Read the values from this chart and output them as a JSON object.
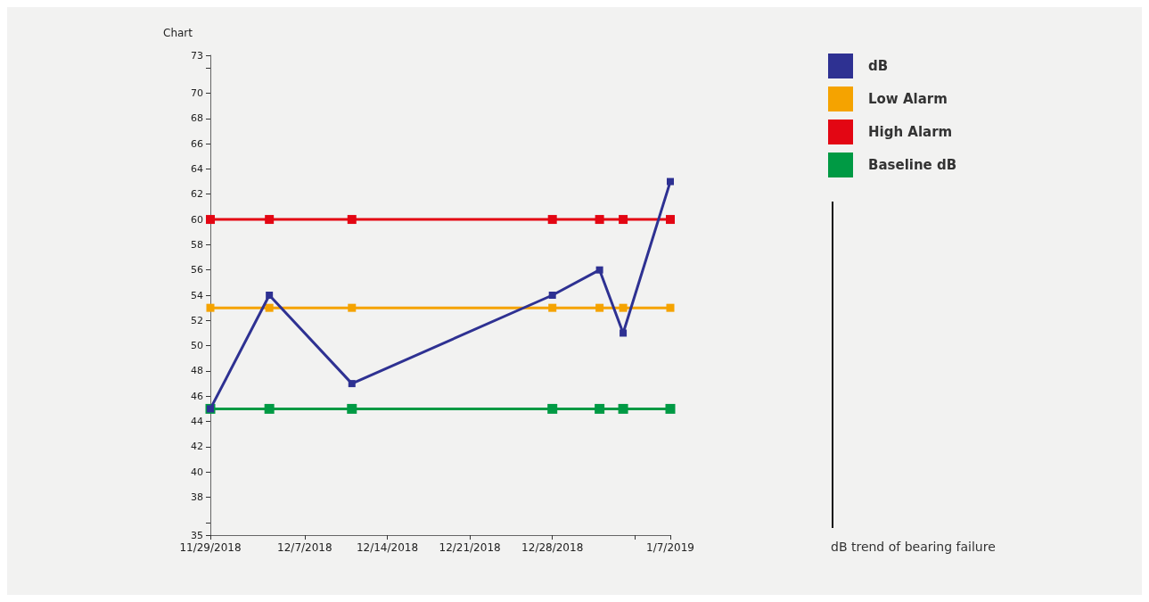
{
  "chart_data": {
    "type": "line",
    "title": "Chart",
    "x": [
      "2018-11-29",
      "2018-12-04",
      "2018-12-11",
      "2018-12-28",
      "2019-01-01",
      "2019-01-03",
      "2019-01-07"
    ],
    "series": [
      {
        "name": "dB",
        "color": "#2e3192",
        "values": [
          45,
          54,
          47,
          54,
          56,
          51,
          63
        ]
      },
      {
        "name": "Low Alarm",
        "color": "#f5a300",
        "values": [
          53,
          53,
          53,
          53,
          53,
          53,
          53
        ]
      },
      {
        "name": "High Alarm",
        "color": "#e30613",
        "values": [
          60,
          60,
          60,
          60,
          60,
          60,
          60
        ]
      },
      {
        "name": "Baseline dB",
        "color": "#009a44",
        "values": [
          45,
          45,
          45,
          45,
          45,
          45,
          45
        ]
      }
    ],
    "xlim": [
      "2018-11-29",
      "2019-01-07"
    ],
    "xticks": [
      {
        "value": "2018-11-29",
        "label": "11/29/2018"
      },
      {
        "value": "2018-12-07",
        "label": "12/7/2018"
      },
      {
        "value": "2018-12-14",
        "label": "12/14/2018"
      },
      {
        "value": "2018-12-21",
        "label": "12/21/2018"
      },
      {
        "value": "2018-12-28",
        "label": "12/28/2018"
      },
      {
        "value": "2019-01-04",
        "label": null
      },
      {
        "value": "2019-01-07",
        "label": "1/7/2019"
      }
    ],
    "ylim": [
      35,
      73
    ],
    "yticks": [
      35,
      {
        "value": 36,
        "label": null
      },
      38,
      40,
      42,
      44,
      46,
      48,
      50,
      52,
      54,
      56,
      58,
      60,
      62,
      64,
      66,
      68,
      70,
      {
        "value": 72,
        "label": null
      },
      73
    ],
    "annotations": [
      "dB trend of bearing failure"
    ],
    "legend": "top right",
    "marker": "square",
    "line_style": "solid",
    "grid": false
  }
}
